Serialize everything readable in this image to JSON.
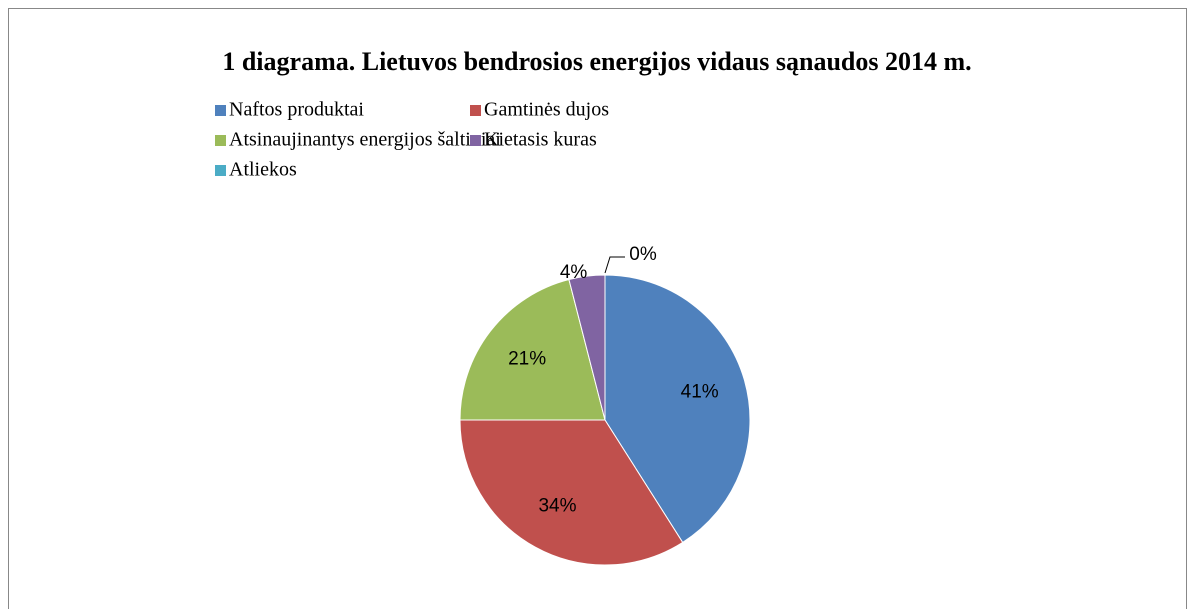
{
  "chart_data": {
    "type": "pie",
    "title": "1 diagrama. Lietuvos bendrosios energijos vidaus sąnaudos 2014 m.",
    "categories": [
      "Naftos produktai",
      "Gamtinės dujos",
      "Atsinaujinantys energijos šaltiniai",
      "Kietasis kuras",
      "Atliekos"
    ],
    "values": [
      41,
      34,
      21,
      4,
      0
    ],
    "value_labels": [
      "41%",
      "34%",
      "21%",
      "4%",
      "0%"
    ],
    "colors": [
      "#4f81bd",
      "#c0504d",
      "#9bbb59",
      "#8064a2",
      "#4bacc6"
    ],
    "legend": "top"
  }
}
